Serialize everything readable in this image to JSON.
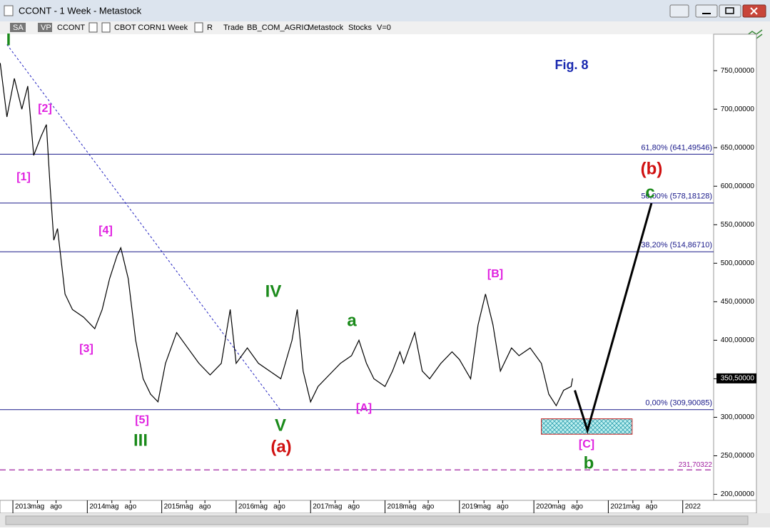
{
  "window": {
    "title": "CCONT - 1 Week - Metastock",
    "toolbar": [
      "SA",
      "VP",
      "CCONT",
      "CBOT CORN",
      "1 Week",
      "R",
      "Trade",
      "BB_COM_AGRIC",
      "Metastock",
      "Stocks",
      "V=0"
    ]
  },
  "chart_data": {
    "type": "line",
    "fig_label": "Fig. 8",
    "xlim": [
      2012.827,
      2022.415
    ],
    "ylim": [
      194,
      814
    ],
    "xticks": [
      2013,
      {
        "value": 2013.33,
        "label": "mag"
      },
      {
        "value": 2013.58,
        "label": "ago"
      },
      2014,
      {
        "value": 2014.33,
        "label": "mag"
      },
      {
        "value": 2014.58,
        "label": "ago"
      },
      2015,
      {
        "value": 2015.33,
        "label": "mag"
      },
      {
        "value": 2015.58,
        "label": "ago"
      },
      2016,
      {
        "value": 2016.33,
        "label": "mag"
      },
      {
        "value": 2016.58,
        "label": "ago"
      },
      2017,
      {
        "value": 2017.33,
        "label": "mag"
      },
      {
        "value": 2017.58,
        "label": "ago"
      },
      2018,
      {
        "value": 2018.33,
        "label": "mag"
      },
      {
        "value": 2018.58,
        "label": "ago"
      },
      2019,
      {
        "value": 2019.33,
        "label": "mag"
      },
      {
        "value": 2019.58,
        "label": "ago"
      },
      2020,
      {
        "value": 2020.33,
        "label": "mag"
      },
      {
        "value": 2020.58,
        "label": "ago"
      },
      2021,
      {
        "value": 2021.33,
        "label": "mag"
      },
      {
        "value": 2021.58,
        "label": "ago"
      },
      2022
    ],
    "yticks": [
      {
        "value": 200,
        "label": "200,00000"
      },
      {
        "value": 250,
        "label": "250,00000"
      },
      {
        "value": 300,
        "label": "300,00000"
      },
      {
        "value": 350,
        "label": "350,00000"
      },
      {
        "value": 400,
        "label": "400,00000"
      },
      {
        "value": 450,
        "label": "450,00000"
      },
      {
        "value": 500,
        "label": "500,00000"
      },
      {
        "value": 550,
        "label": "550,00000"
      },
      {
        "value": 600,
        "label": "600,00000"
      },
      {
        "value": 650,
        "label": "650,00000"
      },
      {
        "value": 700,
        "label": "700,00000"
      },
      {
        "value": 750,
        "label": "750,00000"
      }
    ],
    "series": [
      {
        "color": "#000000",
        "x": [
          2012.83,
          2012.92,
          2013.02,
          2013.12,
          2013.2,
          2013.28,
          2013.38,
          2013.45,
          2013.5,
          2013.55,
          2013.6,
          2013.7,
          2013.8,
          2013.95,
          2014.1,
          2014.2,
          2014.3,
          2014.4,
          2014.45,
          2014.55,
          2014.65,
          2014.75,
          2014.85,
          2014.95,
          2015.05,
          2015.2,
          2015.35,
          2015.5,
          2015.65,
          2015.8,
          2015.92,
          2016.0,
          2016.15,
          2016.3,
          2016.45,
          2016.6,
          2016.75,
          2016.82,
          2016.9,
          2017.0,
          2017.1,
          2017.25,
          2017.4,
          2017.55,
          2017.65,
          2017.75,
          2017.85,
          2018.0,
          2018.1,
          2018.2,
          2018.25,
          2018.4,
          2018.5,
          2018.6,
          2018.75,
          2018.9,
          2019.0,
          2019.15,
          2019.25,
          2019.35,
          2019.45,
          2019.55,
          2019.7,
          2019.8,
          2019.95,
          2020.1,
          2020.2,
          2020.3,
          2020.4,
          2020.5,
          2020.52
        ],
        "values": [
          760,
          690,
          740,
          700,
          730,
          640,
          665,
          680,
          600,
          530,
          545,
          460,
          440,
          430,
          415,
          440,
          480,
          510,
          520,
          480,
          400,
          350,
          330,
          320,
          370,
          410,
          390,
          370,
          355,
          370,
          440,
          370,
          390,
          370,
          360,
          350,
          400,
          440,
          360,
          320,
          340,
          355,
          370,
          380,
          400,
          370,
          350,
          340,
          360,
          385,
          370,
          410,
          360,
          350,
          370,
          385,
          375,
          350,
          420,
          460,
          420,
          360,
          390,
          380,
          390,
          370,
          330,
          315,
          335,
          340,
          350.5
        ]
      }
    ],
    "last_price": {
      "value": 350.5,
      "label": "350,50000"
    },
    "projection": {
      "x": [
        2020.55,
        2020.72,
        2021.58
      ],
      "values": [
        335,
        283,
        578
      ]
    },
    "trendline": {
      "x": [
        2012.92,
        2016.59
      ],
      "values": [
        784,
        310
      ]
    },
    "target_zone": {
      "x": [
        2020.1,
        2021.32
      ],
      "y": [
        278,
        298
      ]
    },
    "levels": [
      {
        "value": 641.49546,
        "label": "61,80% (641,49546)"
      },
      {
        "value": 578.18128,
        "label": "50,00% (578,18128)"
      },
      {
        "value": 514.8671,
        "label": "38,20% (514,86710)"
      },
      {
        "value": 309.90085,
        "label": "0,00% (309,90085)"
      }
    ],
    "support": {
      "value": 231.70322,
      "label": "231,70322"
    },
    "annotations": [
      "I",
      "[2]",
      "[1]",
      "[4]",
      "[3]",
      "[5]",
      "III",
      "IV",
      "V",
      "(a)",
      "a",
      "[A]",
      "[B]",
      "(b)",
      "c",
      "[C]",
      "b"
    ]
  }
}
